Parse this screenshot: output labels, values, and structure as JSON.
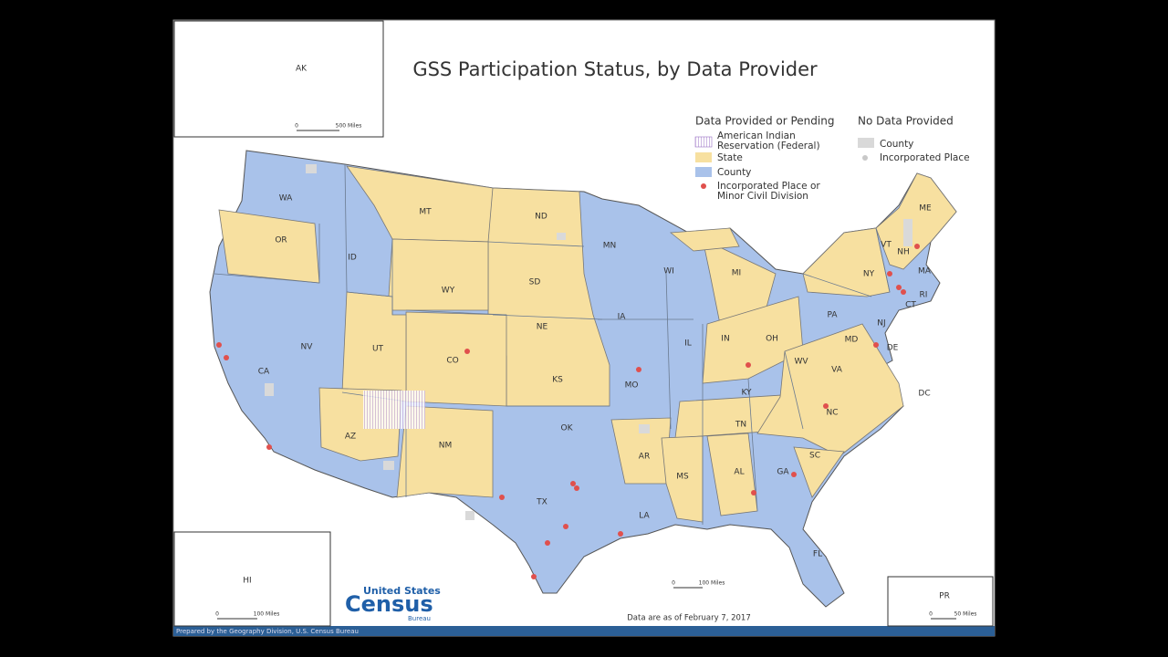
{
  "title": "GSS Participation Status, by Data Provider",
  "legend": {
    "provided_heading": "Data Provided or Pending",
    "provided_items": [
      [
        "American Indian",
        "Reservation (Federal)"
      ],
      [
        "State"
      ],
      [
        "County"
      ],
      [
        "Incorporated Place or",
        "Minor Civil Division"
      ]
    ],
    "none_heading": "No Data Provided",
    "none_items": [
      "County",
      "Incorporated Place"
    ]
  },
  "state_labels": [
    "WA",
    "OR",
    "CA",
    "NV",
    "ID",
    "MT",
    "WY",
    "UT",
    "AZ",
    "CO",
    "NM",
    "ND",
    "SD",
    "NE",
    "KS",
    "OK",
    "TX",
    "MN",
    "IA",
    "MO",
    "AR",
    "LA",
    "WI",
    "IL",
    "MI",
    "IN",
    "OH",
    "KY",
    "TN",
    "MS",
    "AL",
    "GA",
    "FL",
    "SC",
    "NC",
    "VA",
    "WV",
    "PA",
    "NY",
    "VT",
    "NH",
    "ME",
    "MA",
    "RI",
    "CT",
    "NJ",
    "DE",
    "MD",
    "DC",
    "AK",
    "HI",
    "PR"
  ],
  "scale_bars": {
    "alaska": [
      "0",
      "500 Miles"
    ],
    "hawaii": [
      "0",
      "100 Miles"
    ],
    "main": [
      "0",
      "100 Miles"
    ],
    "puerto_rico": [
      "0",
      "50 Miles"
    ]
  },
  "note": "Data are as of February 7, 2017",
  "logo": [
    "United States",
    "Census",
    "Bureau"
  ],
  "footer": "Prepared by the Geography Division, U.S. Census Bureau"
}
